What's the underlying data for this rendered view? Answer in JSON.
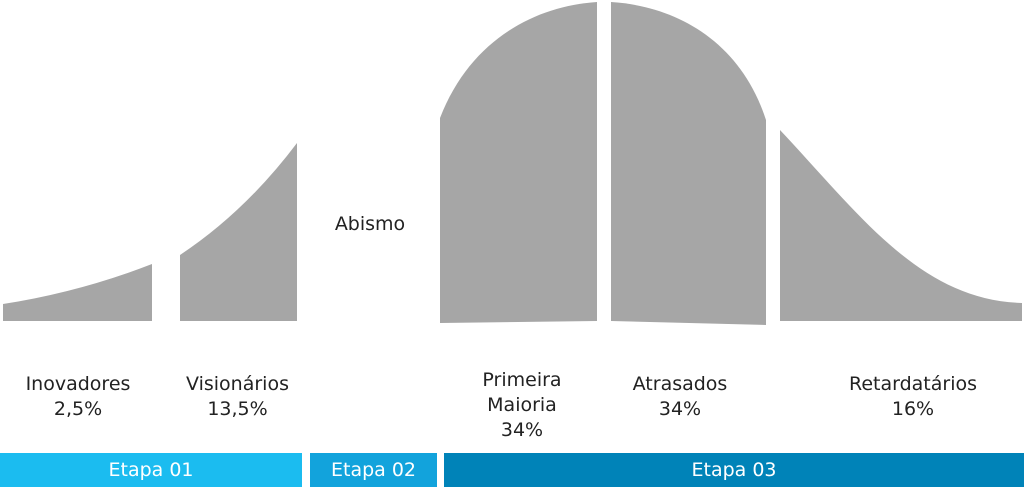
{
  "gap_label": "Abismo",
  "segments": [
    {
      "label": "Inovadores",
      "share": "2,5%"
    },
    {
      "label": "Visionários",
      "share": "13,5%"
    },
    {
      "label": "Primeira Maioria",
      "share": "34%"
    },
    {
      "label": "Atrasados",
      "share": "34%"
    },
    {
      "label": "Retardatários",
      "share": "16%"
    }
  ],
  "stages": [
    "Etapa 01",
    "Etapa 02",
    "Etapa 03"
  ]
}
